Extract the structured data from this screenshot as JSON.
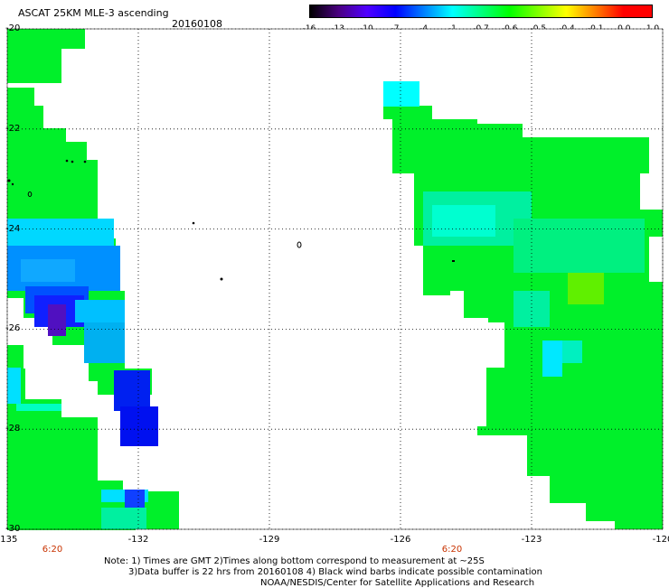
{
  "title": "ASCAT 25KM MLE-3 ascending",
  "date": "20160108",
  "colorbar": {
    "tick_labels": [
      "-16",
      "-13",
      "-10",
      "-7",
      "-4",
      "-1",
      "-0.7",
      "-0.6",
      "-0.5",
      "-0.4",
      "-0.1",
      "0.0",
      "1.0"
    ],
    "colors": [
      "#000000",
      "#4a0080",
      "#5000ff",
      "#0000ff",
      "#0080ff",
      "#00ffff",
      "#00ff80",
      "#00ff00",
      "#80ff00",
      "#ffff00",
      "#ff8000",
      "#ff0000",
      "#ff0000"
    ]
  },
  "map": {
    "lon_range": [
      -135,
      -120
    ],
    "lat_range": [
      -30,
      -20
    ],
    "x_tick_labels": [
      "-135",
      "-132",
      "-129",
      "-126",
      "-123",
      "-120"
    ],
    "y_tick_labels": [
      "-20",
      "-22",
      "-24",
      "-26",
      "-28",
      "-30"
    ],
    "grid": true
  },
  "time_labels": [
    "6:20",
    "6:20"
  ],
  "notes": {
    "line1": "Note: 1) Times are GMT 2)Times along bottom correspond to measurement at ~25S",
    "line2": "3)Data buffer is 22 hrs from 20160108 4) Black wind barbs indicate possible contamination",
    "line3": "NOAA/NESDIS/Center for Satellite Applications and Research"
  }
}
